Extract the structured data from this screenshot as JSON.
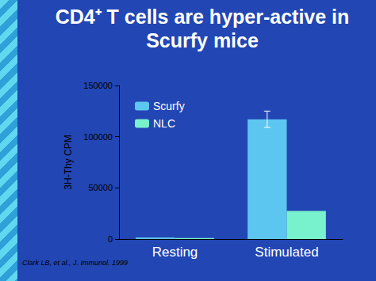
{
  "chart_data": {
    "type": "bar",
    "title": "CD4⁺ T cells are hyper-active in Scurfy mice",
    "categories": [
      "Resting",
      "Stimulated"
    ],
    "series": [
      {
        "name": "Scurfy",
        "color": "#5cc6f0",
        "values": [
          1500,
          117000
        ],
        "error": [
          null,
          8000
        ]
      },
      {
        "name": "NLC",
        "color": "#78f2cc",
        "values": [
          1000,
          27500
        ]
      }
    ],
    "ylabel": "3H-Thy CPM",
    "ylim": [
      0,
      150000
    ],
    "yticks": [
      0,
      50000,
      100000,
      150000
    ],
    "grid": false,
    "legend": "upper left",
    "annotations": [
      "Clark LB, et al., J. Immunol. 1999"
    ]
  }
}
